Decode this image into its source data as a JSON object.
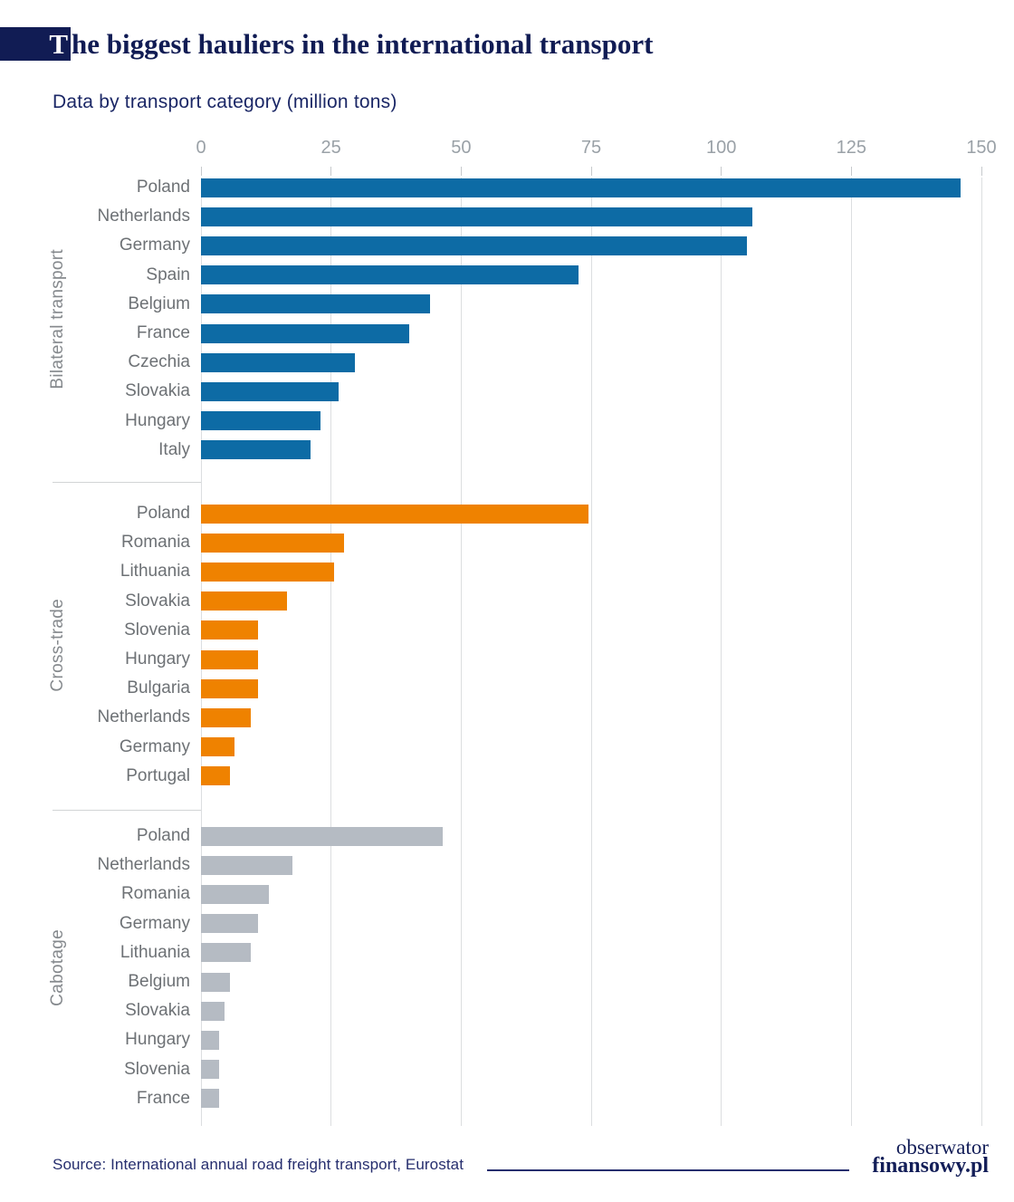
{
  "header": {
    "title_first_letter": "T",
    "title_rest": "he biggest hauliers in the international transport",
    "title_full": "The biggest hauliers in the international transport"
  },
  "subtitle": "Data by transport category (million tons)",
  "footer": {
    "source": "Source: International annual road freight transport, Eurostat",
    "logo_line1": "obserwator",
    "logo_line2": "finansowy.pl"
  },
  "colors": {
    "navy": "#111c54",
    "bilateral_blue": "#0d6ba5",
    "cross_trade_orange": "#ef8200",
    "cabotage_gray": "#b5bbc3",
    "gridline": "#dcdee0",
    "tick_label": "#9aa1a7",
    "category_label": "#6d7175"
  },
  "chart_data": {
    "type": "bar",
    "orientation": "horizontal",
    "title": "The biggest hauliers in the international transport",
    "subtitle": "Data by transport category (million tons)",
    "unit": "million tons",
    "xlim": [
      0,
      150
    ],
    "x_ticks": [
      0,
      25,
      50,
      75,
      100,
      125,
      150
    ],
    "grid": "vertical",
    "groups": [
      {
        "label": "Bilateral transport",
        "color": "#0d6ba5",
        "categories": [
          "Poland",
          "Netherlands",
          "Germany",
          "Spain",
          "Belgium",
          "France",
          "Czechia",
          "Slovakia",
          "Hungary",
          "Italy"
        ],
        "values": [
          146,
          106,
          105,
          72.5,
          44,
          40,
          29.5,
          26.5,
          23,
          21
        ]
      },
      {
        "label": "Cross-trade",
        "color": "#ef8200",
        "categories": [
          "Poland",
          "Romania",
          "Lithuania",
          "Slovakia",
          "Slovenia",
          "Hungary",
          "Bulgaria",
          "Netherlands",
          "Germany",
          "Portugal"
        ],
        "values": [
          74.5,
          27.5,
          25.5,
          16.5,
          11,
          11,
          11,
          9.5,
          6.5,
          5.5
        ]
      },
      {
        "label": "Cabotage",
        "color": "#b5bbc3",
        "categories": [
          "Poland",
          "Netherlands",
          "Romania",
          "Germany",
          "Lithuania",
          "Belgium",
          "Slovakia",
          "Hungary",
          "Slovenia",
          "France"
        ],
        "values": [
          46.5,
          17.5,
          13,
          11,
          9.5,
          5.5,
          4.5,
          3.5,
          3.5,
          3.5
        ]
      }
    ]
  }
}
